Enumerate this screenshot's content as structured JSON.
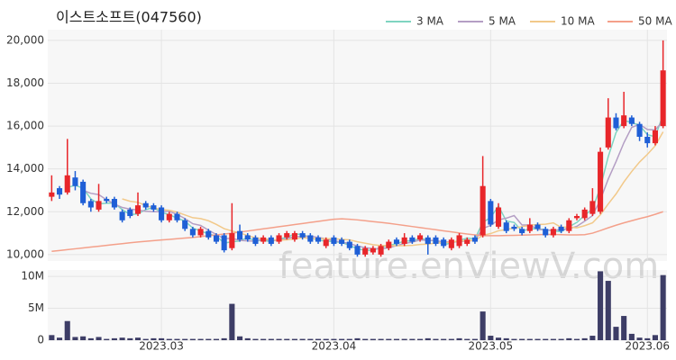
{
  "chart_data": {
    "type": "candlestick",
    "title": "이스트소프트(047560)",
    "watermark": "feature.enViewV.com",
    "categories": [
      null,
      null,
      null,
      null,
      null,
      null,
      null,
      null,
      null,
      null,
      null,
      null,
      null,
      null,
      "2023.03",
      null,
      null,
      null,
      null,
      null,
      null,
      null,
      null,
      null,
      null,
      null,
      null,
      null,
      null,
      null,
      null,
      null,
      null,
      null,
      null,
      null,
      "2023.04",
      null,
      null,
      null,
      null,
      null,
      null,
      null,
      null,
      null,
      null,
      null,
      null,
      null,
      null,
      null,
      null,
      null,
      null,
      null,
      "2023.05",
      null,
      null,
      null,
      null,
      null,
      null,
      null,
      null,
      null,
      null,
      null,
      null,
      null,
      null,
      null,
      null,
      null,
      null,
      null,
      "2023.06",
      null,
      null
    ],
    "ohlc": {
      "up_color": "#e8262a",
      "down_color": "#1f5fd6",
      "open": [
        12700,
        13100,
        12900,
        13600,
        13400,
        12500,
        12100,
        12600,
        12600,
        12000,
        12100,
        11900,
        12400,
        12300,
        12200,
        11600,
        11900,
        11600,
        11200,
        10900,
        11100,
        10900,
        10900,
        10300,
        11100,
        10900,
        10800,
        10600,
        10800,
        10600,
        10800,
        10700,
        11000,
        10900,
        10800,
        10400,
        10800,
        10700,
        10600,
        10400,
        10000,
        10100,
        10000,
        10300,
        10700,
        10500,
        10800,
        10700,
        10800,
        10800,
        10700,
        10300,
        10400,
        10500,
        10800,
        10900,
        12500,
        11300,
        11500,
        11300,
        11200,
        11100,
        11400,
        11200,
        10900,
        11300,
        11100,
        11700,
        11700,
        11900,
        12000,
        15000,
        16400,
        16000,
        16400,
        16100,
        15500,
        15200,
        16000
      ],
      "high": [
        13700,
        13200,
        15400,
        13900,
        13500,
        12600,
        13300,
        12700,
        12700,
        12100,
        12200,
        12900,
        12500,
        12400,
        12300,
        12000,
        12000,
        11700,
        11300,
        11300,
        11200,
        11000,
        11000,
        12400,
        11400,
        11000,
        10900,
        10900,
        10900,
        11000,
        11100,
        11100,
        11100,
        11000,
        10900,
        10800,
        10900,
        10800,
        10700,
        10500,
        10400,
        10400,
        10500,
        10700,
        10800,
        11000,
        10900,
        11000,
        10900,
        10900,
        10800,
        10800,
        11000,
        10800,
        10900,
        14600,
        12600,
        12400,
        11600,
        11400,
        11300,
        11700,
        11500,
        11300,
        11300,
        11400,
        11700,
        11900,
        12200,
        13100,
        15000,
        17300,
        16600,
        17600,
        16500,
        16200,
        15700,
        16000,
        20000
      ],
      "low": [
        12500,
        12600,
        12800,
        13000,
        12300,
        12000,
        12000,
        12400,
        12100,
        11500,
        11700,
        11800,
        12100,
        12000,
        11500,
        11500,
        11500,
        11100,
        10800,
        10800,
        10700,
        10500,
        10100,
        10200,
        10600,
        10600,
        10400,
        10500,
        10400,
        10500,
        10700,
        10600,
        10700,
        10500,
        10500,
        10300,
        10400,
        10400,
        10200,
        9900,
        9900,
        10000,
        9900,
        10200,
        10400,
        10400,
        10500,
        10600,
        10000,
        10400,
        10300,
        10200,
        10300,
        10400,
        10500,
        10800,
        11300,
        11200,
        11000,
        11100,
        10900,
        11000,
        11100,
        10800,
        10800,
        11000,
        11000,
        11600,
        11600,
        11800,
        11900,
        14900,
        15800,
        15900,
        16000,
        15300,
        15000,
        15100,
        15900
      ],
      "close": [
        12900,
        12800,
        13700,
        13200,
        12400,
        12200,
        12500,
        12500,
        12200,
        11600,
        11800,
        12300,
        12200,
        12100,
        11600,
        11900,
        11600,
        11200,
        10900,
        11200,
        10800,
        10600,
        10200,
        11000,
        10700,
        10700,
        10500,
        10800,
        10500,
        10900,
        11000,
        11000,
        10800,
        10600,
        10600,
        10700,
        10500,
        10500,
        10300,
        10000,
        10300,
        10300,
        10400,
        10600,
        10500,
        10800,
        10600,
        10900,
        10500,
        10500,
        10400,
        10700,
        10900,
        10700,
        10600,
        13200,
        11400,
        12200,
        11100,
        11200,
        11000,
        11400,
        11200,
        10900,
        11200,
        11100,
        11600,
        11800,
        12100,
        12500,
        14800,
        16400,
        15900,
        16500,
        16100,
        15500,
        15200,
        15800,
        18600
      ]
    },
    "series": [
      {
        "name": "3 MA",
        "color": "#7fd4c1"
      },
      {
        "name": "5 MA",
        "color": "#b49ec4"
      },
      {
        "name": "10 MA",
        "color": "#f2c98a"
      },
      {
        "name": "50 MA",
        "color": "#f4a08a",
        "values": [
          10150,
          10190,
          10230,
          10270,
          10310,
          10350,
          10390,
          10430,
          10470,
          10510,
          10550,
          10590,
          10620,
          10650,
          10680,
          10710,
          10740,
          10770,
          10800,
          10840,
          10880,
          10920,
          10960,
          11000,
          11050,
          11100,
          11150,
          11200,
          11250,
          11300,
          11350,
          11400,
          11450,
          11500,
          11550,
          11600,
          11650,
          11670,
          11650,
          11620,
          11580,
          11540,
          11500,
          11460,
          11410,
          11360,
          11310,
          11260,
          11210,
          11160,
          11110,
          11060,
          11010,
          10960,
          10920,
          10880,
          10880,
          10880,
          10890,
          10900,
          10910,
          10920,
          10930,
          10940,
          10940,
          10930,
          10920,
          10920,
          10930,
          11000,
          11120,
          11250,
          11370,
          11480,
          11580,
          11680,
          11770,
          11880,
          12000
        ]
      }
    ],
    "ylim": [
      9700,
      20500
    ],
    "yticks": [
      {
        "value": 10000,
        "label": "10,000"
      },
      {
        "value": 12000,
        "label": "12,000"
      },
      {
        "value": 14000,
        "label": "14,000"
      },
      {
        "value": 16000,
        "label": "16,000"
      },
      {
        "value": 18000,
        "label": "18,000"
      },
      {
        "value": 20000,
        "label": "20,000"
      }
    ],
    "grid": true,
    "volume": {
      "color": "#3d3d66",
      "ylim": [
        0,
        11000000
      ],
      "yticks": [
        0,
        {
          "value": 5000000,
          "label": "5M"
        },
        {
          "value": 10000000,
          "label": "10M"
        }
      ],
      "values": [
        800000,
        400000,
        3000000,
        500000,
        600000,
        300000,
        500000,
        200000,
        300000,
        400000,
        300000,
        400000,
        200000,
        300000,
        300000,
        200000,
        200000,
        200000,
        200000,
        200000,
        200000,
        200000,
        300000,
        5700000,
        600000,
        300000,
        200000,
        200000,
        200000,
        200000,
        200000,
        200000,
        200000,
        200000,
        200000,
        200000,
        200000,
        200000,
        200000,
        300000,
        200000,
        200000,
        200000,
        200000,
        200000,
        200000,
        200000,
        200000,
        300000,
        200000,
        200000,
        200000,
        300000,
        200000,
        200000,
        4500000,
        700000,
        400000,
        300000,
        200000,
        200000,
        200000,
        200000,
        200000,
        200000,
        200000,
        300000,
        200000,
        300000,
        700000,
        10800000,
        9300000,
        2100000,
        3800000,
        1000000,
        400000,
        300000,
        800000,
        10200000
      ]
    }
  }
}
